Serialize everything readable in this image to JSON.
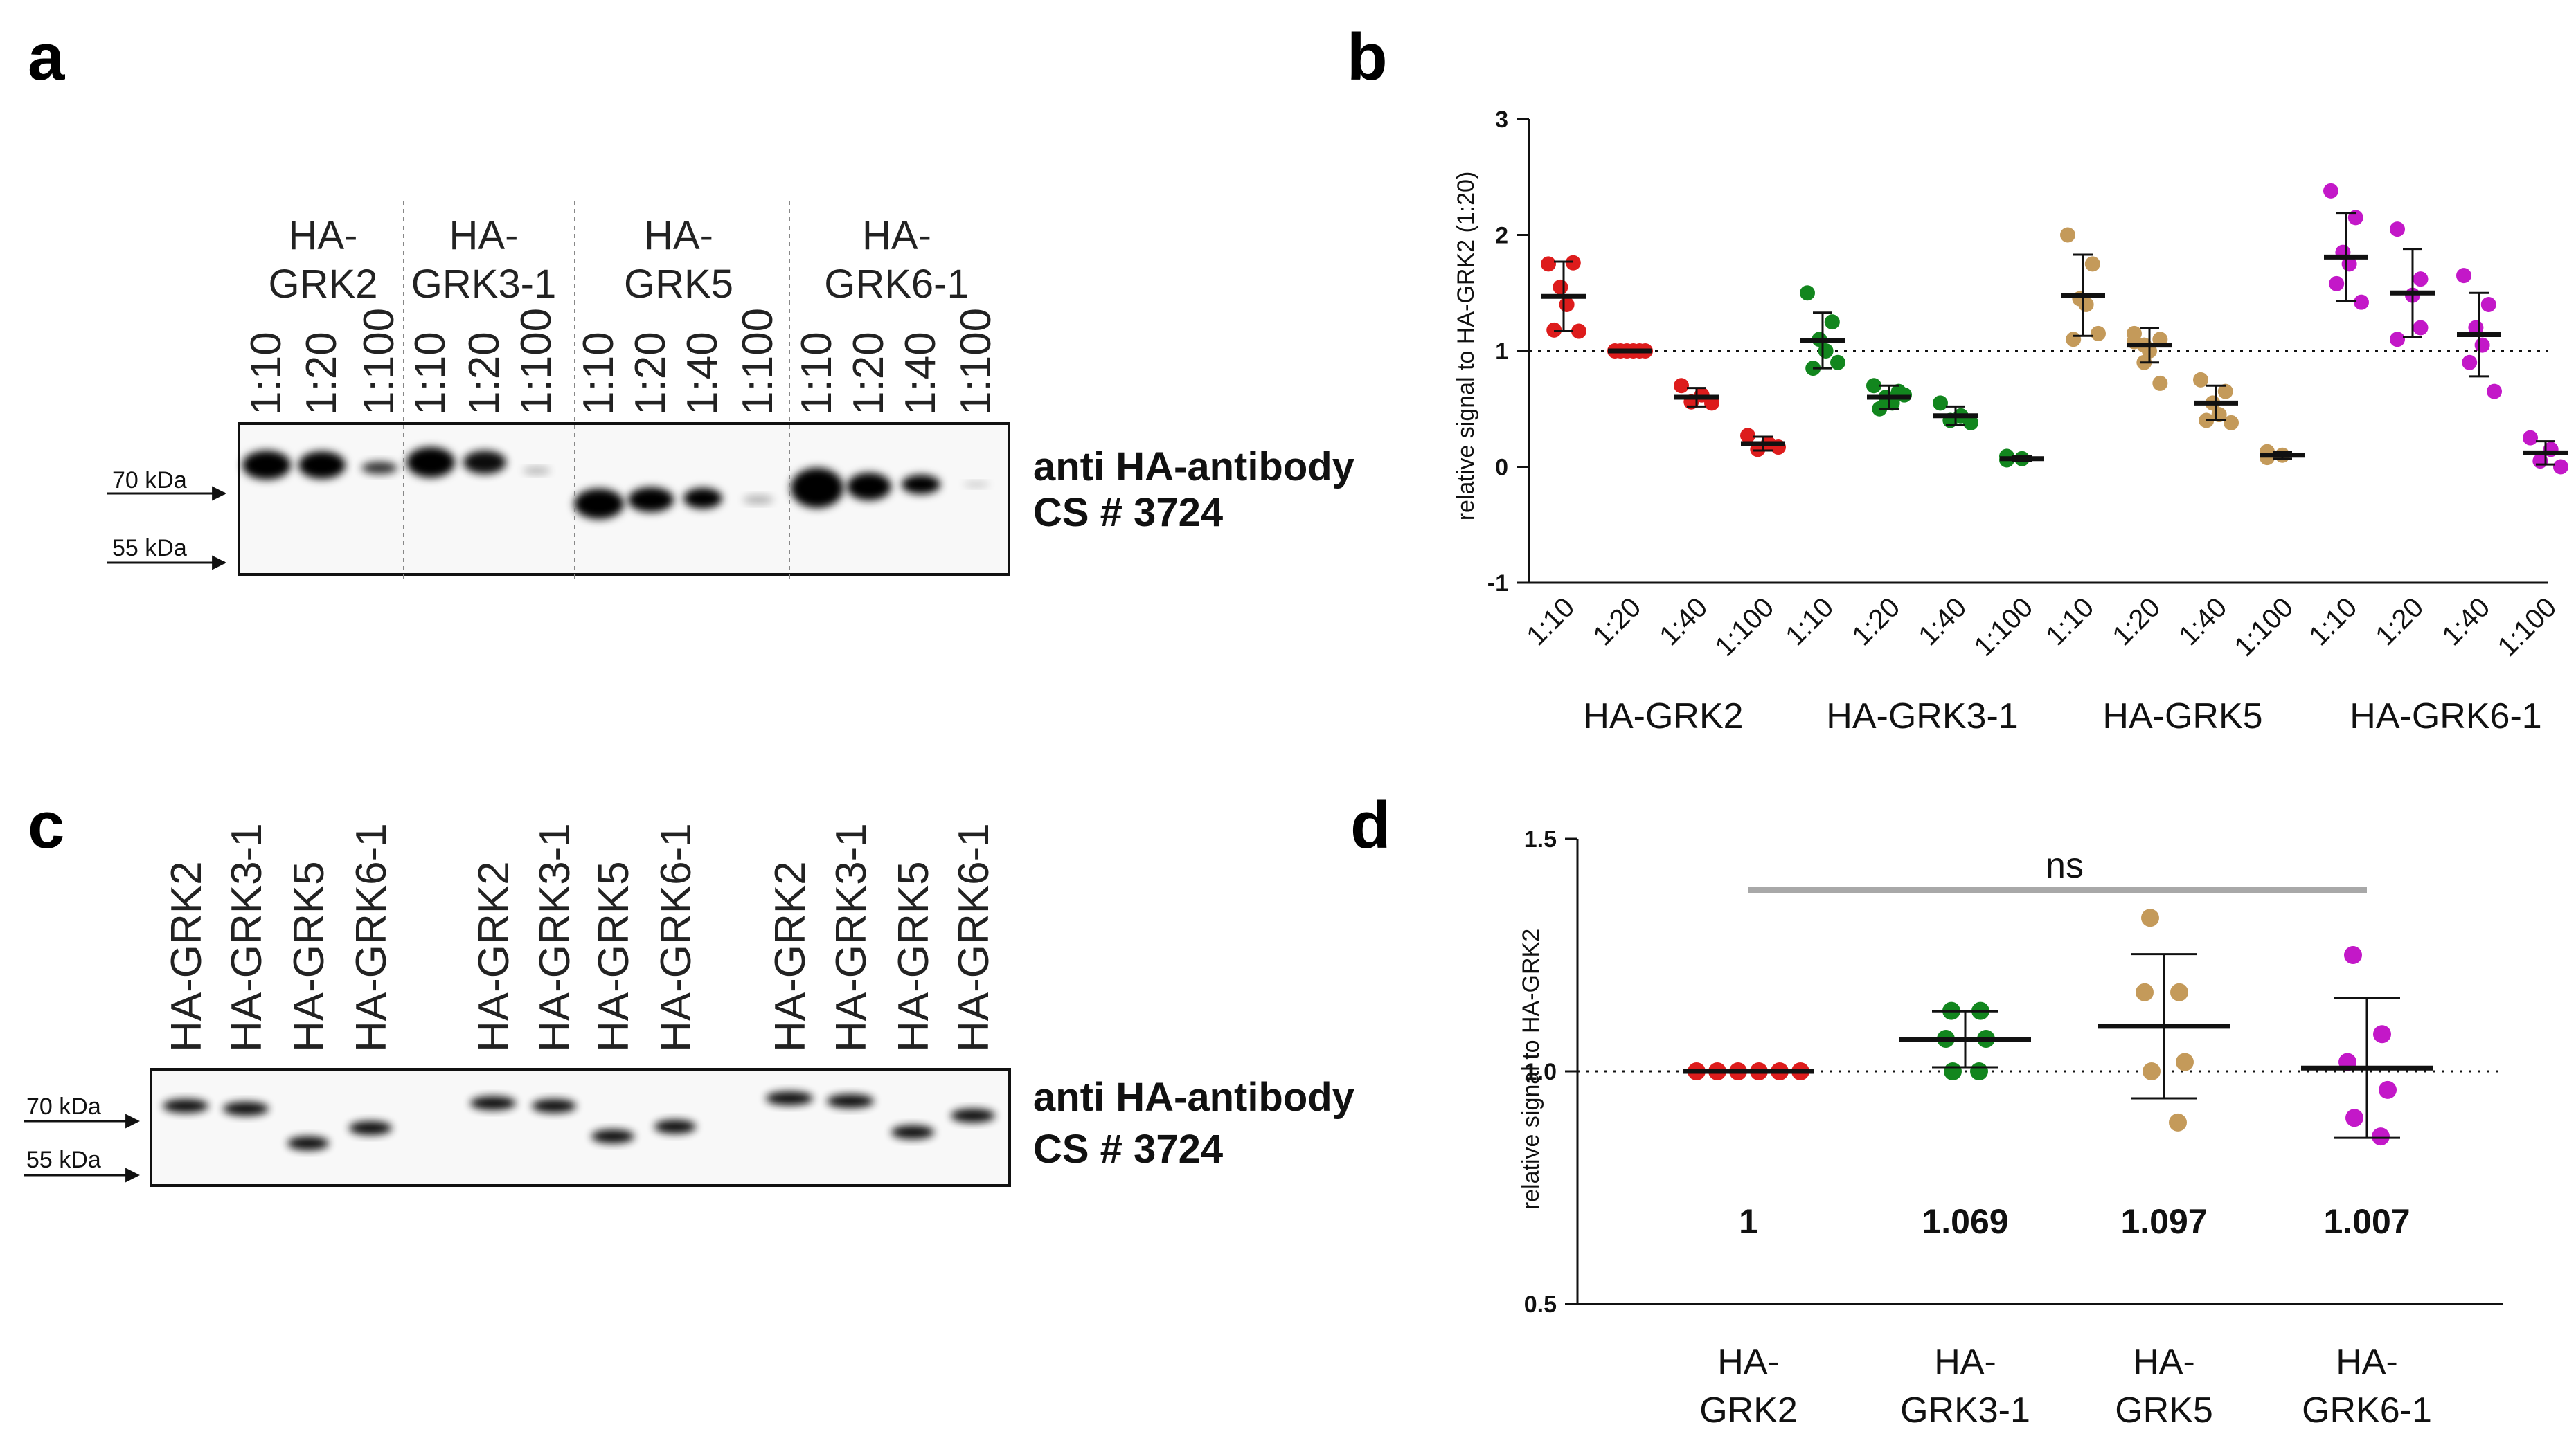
{
  "panel_labels": {
    "a": "a",
    "b": "b",
    "c": "c",
    "d": "d"
  },
  "colors": {
    "grk2": "#dd1c1c",
    "grk3": "#12861e",
    "grk5": "#c49a5a",
    "grk6": "#c318c8",
    "ns_line": "#a8a8a8"
  },
  "blot_a": {
    "groups": [
      {
        "line1": "HA-",
        "line2": "GRK2",
        "lanes": [
          "1:10",
          "1:20",
          "1:100"
        ]
      },
      {
        "line1": "HA-",
        "line2": "GRK3-1",
        "lanes": [
          "1:10",
          "1:20",
          "1:100"
        ]
      },
      {
        "line1": "HA-",
        "line2": "GRK5",
        "lanes": [
          "1:10",
          "1:20",
          "1:40",
          "1:100"
        ]
      },
      {
        "line1": "HA-",
        "line2": "GRK6-1",
        "lanes": [
          "1:10",
          "1:20",
          "1:40",
          "1:100"
        ]
      }
    ],
    "antibody_line1": "anti HA-antibody",
    "antibody_line2": "CS # 3724",
    "marker_70": "70 kDa",
    "marker_55": "55 kDa"
  },
  "blot_c": {
    "lanes": [
      "HA-GRK2",
      "HA-GRK3-1",
      "HA-GRK5",
      "HA-GRK6-1",
      "HA-GRK2",
      "HA-GRK3-1",
      "HA-GRK5",
      "HA-GRK6-1",
      "HA-GRK2",
      "HA-GRK3-1",
      "HA-GRK5",
      "HA-GRK6-1"
    ],
    "antibody_line1": "anti HA-antibody",
    "antibody_line2": "CS # 3724",
    "marker_70": "70 kDa",
    "marker_55": "55 kDa"
  },
  "chart_data": [
    {
      "type": "scatter",
      "panel": "b",
      "title": "",
      "ylabel": "relative signal to HA-GRK2 (1:20)",
      "ylim": [
        -1,
        3
      ],
      "yticks": [
        "-1",
        "0",
        "1",
        "2",
        "3"
      ],
      "reference_line": 1,
      "categories": [
        "1:10",
        "1:20",
        "1:40",
        "1:100"
      ],
      "groups": [
        {
          "name": "HA-GRK2",
          "color": "#dd1c1c",
          "series": [
            {
              "dilution": "1:10",
              "mean": 1.47,
              "sd": 0.3,
              "points": [
                1.75,
                1.76,
                1.55,
                1.4,
                1.18,
                1.17
              ]
            },
            {
              "dilution": "1:20",
              "mean": 1.0,
              "sd": 0.0,
              "points": [
                1.0,
                1.0,
                1.0,
                1.0,
                1.0,
                1.0
              ]
            },
            {
              "dilution": "1:40",
              "mean": 0.6,
              "sd": 0.08,
              "points": [
                0.7,
                0.62,
                0.56,
                0.55
              ]
            },
            {
              "dilution": "1:100",
              "mean": 0.2,
              "sd": 0.06,
              "points": [
                0.27,
                0.2,
                0.15,
                0.17
              ]
            }
          ]
        },
        {
          "name": "HA-GRK3-1",
          "color": "#12861e",
          "series": [
            {
              "dilution": "1:10",
              "mean": 1.09,
              "sd": 0.24,
              "points": [
                1.5,
                1.25,
                1.1,
                1.0,
                0.85,
                0.9
              ]
            },
            {
              "dilution": "1:20",
              "mean": 0.6,
              "sd": 0.1,
              "points": [
                0.7,
                0.65,
                0.6,
                0.55,
                0.5,
                0.62
              ]
            },
            {
              "dilution": "1:40",
              "mean": 0.44,
              "sd": 0.08,
              "points": [
                0.55,
                0.44,
                0.4,
                0.38
              ]
            },
            {
              "dilution": "1:100",
              "mean": 0.07,
              "sd": 0.02,
              "points": [
                0.09,
                0.07,
                0.06
              ]
            }
          ]
        },
        {
          "name": "HA-GRK5",
          "color": "#c49a5a",
          "series": [
            {
              "dilution": "1:10",
              "mean": 1.48,
              "sd": 0.35,
              "points": [
                2.0,
                1.75,
                1.45,
                1.4,
                1.1,
                1.15
              ]
            },
            {
              "dilution": "1:20",
              "mean": 1.05,
              "sd": 0.15,
              "points": [
                1.15,
                1.1,
                1.05,
                1.0,
                0.9,
                0.72,
                1.08
              ]
            },
            {
              "dilution": "1:40",
              "mean": 0.55,
              "sd": 0.15,
              "points": [
                0.75,
                0.65,
                0.55,
                0.45,
                0.4,
                0.38
              ]
            },
            {
              "dilution": "1:100",
              "mean": 0.1,
              "sd": 0.03,
              "points": [
                0.13,
                0.1,
                0.08
              ]
            }
          ]
        },
        {
          "name": "HA-GRK6-1",
          "color": "#c318c8",
          "series": [
            {
              "dilution": "1:10",
              "mean": 1.81,
              "sd": 0.38,
              "points": [
                2.38,
                2.15,
                1.85,
                1.75,
                1.58,
                1.42
              ]
            },
            {
              "dilution": "1:20",
              "mean": 1.5,
              "sd": 0.38,
              "points": [
                2.05,
                1.62,
                1.48,
                1.2,
                1.1
              ]
            },
            {
              "dilution": "1:40",
              "mean": 1.14,
              "sd": 0.36,
              "points": [
                1.65,
                1.4,
                1.2,
                1.05,
                0.9,
                0.65
              ]
            },
            {
              "dilution": "1:100",
              "mean": 0.12,
              "sd": 0.1,
              "points": [
                0.25,
                0.15,
                0.05,
                0.0
              ]
            }
          ]
        }
      ]
    },
    {
      "type": "scatter",
      "panel": "d",
      "title": "",
      "ylabel": "relative signal to HA-GRK2",
      "ylim": [
        0.5,
        1.5
      ],
      "yticks": [
        "0.5",
        "1.0",
        "1.5"
      ],
      "reference_line": 1.0,
      "significance": {
        "label": "ns",
        "y": 1.39,
        "from": 0,
        "to": 3
      },
      "categories": [
        {
          "line1": "HA-",
          "line2": "GRK2"
        },
        {
          "line1": "HA-",
          "line2": "GRK3-1"
        },
        {
          "line1": "HA-",
          "line2": "GRK5"
        },
        {
          "line1": "HA-",
          "line2": "GRK6-1"
        }
      ],
      "series": [
        {
          "name": "HA-GRK2",
          "color": "#dd1c1c",
          "mean": 1.0,
          "sd": 0.0,
          "mean_label": "1",
          "points": [
            1.0,
            1.0,
            1.0,
            1.0,
            1.0,
            1.0
          ]
        },
        {
          "name": "HA-GRK3-1",
          "color": "#12861e",
          "mean": 1.069,
          "sd": 0.06,
          "mean_label": "1.069",
          "points": [
            1.13,
            1.13,
            1.07,
            1.07,
            1.0,
            1.0
          ]
        },
        {
          "name": "HA-GRK5",
          "color": "#c49a5a",
          "mean": 1.097,
          "sd": 0.155,
          "mean_label": "1.097",
          "points": [
            1.33,
            1.17,
            1.17,
            1.02,
            1.0,
            0.89
          ]
        },
        {
          "name": "HA-GRK6-1",
          "color": "#c318c8",
          "mean": 1.007,
          "sd": 0.15,
          "mean_label": "1.007",
          "points": [
            1.25,
            1.08,
            1.02,
            0.96,
            0.9,
            0.86
          ]
        }
      ]
    }
  ]
}
